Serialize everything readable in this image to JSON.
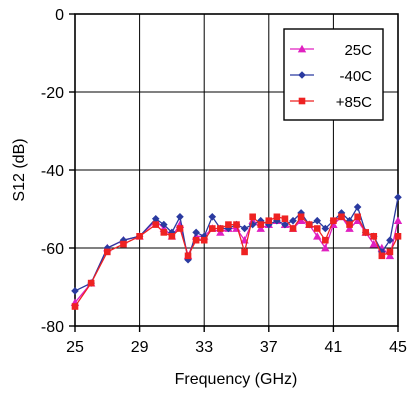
{
  "chart_data": {
    "type": "line",
    "xlabel": "Frequency (GHz)",
    "ylabel": "S12 (dB)",
    "xlim": [
      25,
      45
    ],
    "ylim": [
      -80,
      0
    ],
    "x_ticks": [
      "25",
      "29",
      "33",
      "37",
      "41",
      "45"
    ],
    "y_ticks": [
      "0",
      "-20",
      "-40",
      "-60",
      "-80"
    ],
    "grid": true,
    "legend": "top-right",
    "x": [
      25,
      26,
      27,
      28,
      29,
      30,
      30.5,
      31,
      31.5,
      32,
      32.5,
      33,
      33.5,
      34,
      34.5,
      35,
      35.5,
      36,
      36.5,
      37,
      37.5,
      38,
      38.5,
      39,
      39.5,
      40,
      40.5,
      41,
      41.5,
      42,
      42.5,
      43,
      43.5,
      44,
      44.5,
      45
    ],
    "series": [
      {
        "name": "25C",
        "color": "#e020c0",
        "marker": "triangle",
        "values": [
          -74,
          -69,
          -60,
          -58,
          -57,
          -53,
          -55,
          -57,
          -54,
          -62,
          -57,
          -57,
          -55,
          -56,
          -55,
          -55,
          -58,
          -53,
          -55,
          -54,
          -53,
          -54,
          -55,
          -53,
          -54,
          -57,
          -60,
          -54,
          -52,
          -55,
          -53,
          -56,
          -59,
          -60,
          -62,
          -53
        ]
      },
      {
        "name": "-40C",
        "color": "#2a3aa0",
        "marker": "diamond",
        "values": [
          -71,
          -69,
          -60,
          -58,
          -57,
          -52.5,
          -54,
          -56,
          -52,
          -63,
          -56,
          -57,
          -52,
          -55,
          -55,
          -54,
          -55,
          -54,
          -53,
          -54,
          -53,
          -54,
          -53,
          -51,
          -54,
          -53,
          -55,
          -53,
          -51,
          -53,
          -49.5,
          -56,
          -57,
          -61,
          -58,
          -47
        ]
      },
      {
        "name": "+85C",
        "color": "#ee2222",
        "marker": "square",
        "values": [
          -75,
          -69,
          -61,
          -59,
          -57,
          -54,
          -56,
          -57,
          -55,
          -62,
          -58,
          -58,
          -55,
          -55,
          -54,
          -54,
          -61,
          -52,
          -54,
          -53,
          -52,
          -52.5,
          -55,
          -52,
          -54,
          -55,
          -58,
          -53,
          -52,
          -54,
          -52,
          -56,
          -57,
          -62,
          -61,
          -57
        ]
      }
    ]
  }
}
